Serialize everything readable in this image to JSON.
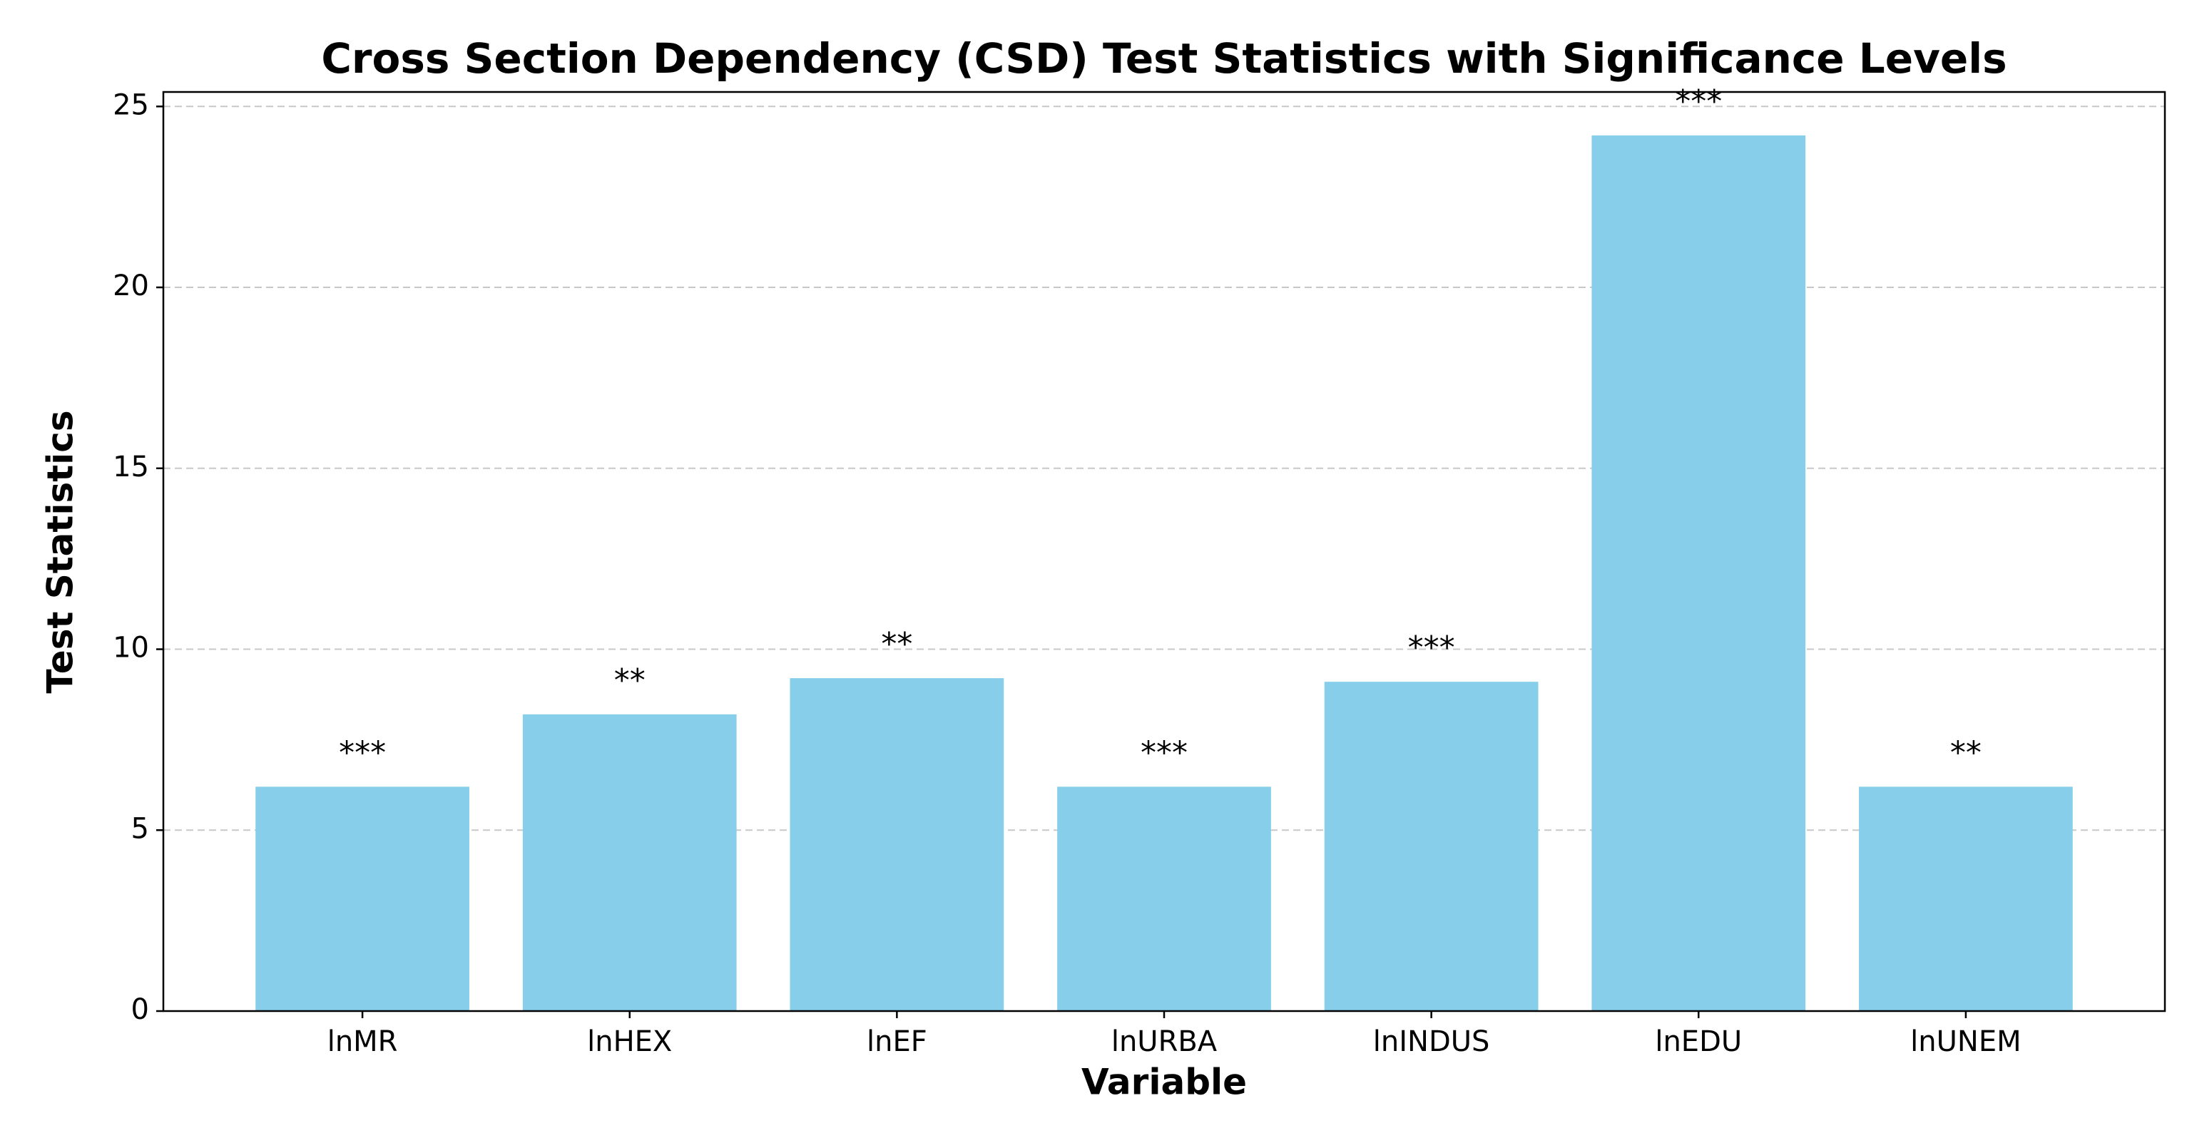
{
  "chart_data": {
    "type": "bar",
    "title": "Cross Section Dependency (CSD) Test Statistics with Significance Levels",
    "x_label": "Variable",
    "y_label": "Test Statistics",
    "categories": [
      "lnMR",
      "lnHEX",
      "lnEF",
      "lnURBA",
      "lnINDUS",
      "lnEDU",
      "lnUNEM"
    ],
    "values": [
      6.2,
      8.2,
      9.2,
      6.2,
      9.1,
      24.2,
      6.2
    ],
    "annotations": [
      "***",
      "**",
      "**",
      "***",
      "***",
      "***",
      "**"
    ],
    "color": "#87ceeb",
    "ylim": [
      0,
      25.4
    ],
    "yticks": [
      0,
      5,
      10,
      15,
      20,
      25
    ],
    "grid": true
  }
}
